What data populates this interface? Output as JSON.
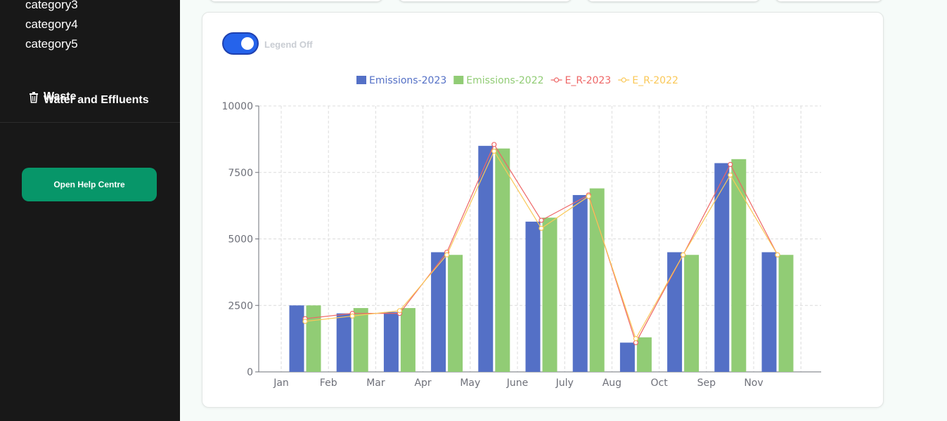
{
  "sidebar": {
    "categories": [
      "category3",
      "category4",
      "category5"
    ],
    "menu": {
      "waste_label": "Waste",
      "water_label": "Water and Effluents"
    },
    "help_button": "Open Help Centre"
  },
  "toggle": {
    "label": "Legend Off",
    "state": "on"
  },
  "chart_data": {
    "type": "bar",
    "categories": [
      "Jan",
      "Feb",
      "Mar",
      "Apr",
      "May",
      "June",
      "July",
      "Aug",
      "Oct",
      "Sep",
      "Nov"
    ],
    "series": [
      {
        "name": "Emissions-2023",
        "kind": "bar",
        "color": "#5470c6",
        "values": [
          2500,
          2200,
          2250,
          4500,
          8500,
          5650,
          6650,
          1100,
          4500,
          7850,
          4500
        ]
      },
      {
        "name": "Emissions-2022",
        "kind": "bar",
        "color": "#91cc75",
        "values": [
          2500,
          2400,
          2400,
          4400,
          8400,
          5800,
          6900,
          1300,
          4400,
          8000,
          4400
        ]
      },
      {
        "name": "E_R-2023",
        "kind": "line",
        "color": "#ee6666",
        "values": [
          2000,
          2200,
          2200,
          4500,
          8550,
          5700,
          6650,
          1100,
          4400,
          7800,
          4400
        ]
      },
      {
        "name": "E_R-2022",
        "kind": "line",
        "color": "#fac858",
        "values": [
          1900,
          2100,
          2300,
          4400,
          8300,
          5400,
          6600,
          1250,
          4400,
          7400,
          4400
        ]
      }
    ],
    "y_ticks": [
      "0",
      "2500",
      "5000",
      "7500",
      "10000"
    ],
    "ylim": [
      0,
      10000
    ],
    "grid": true,
    "legend_position": "top-center"
  }
}
